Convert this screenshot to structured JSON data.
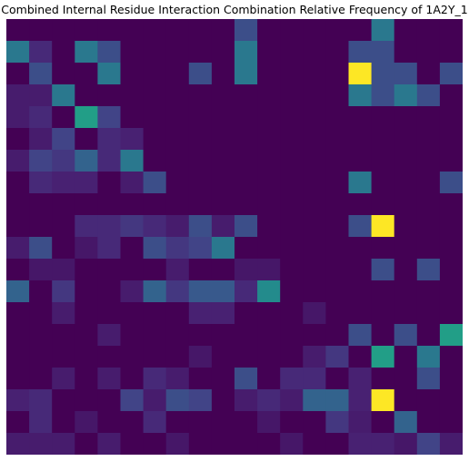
{
  "chart_data": {
    "type": "heatmap",
    "title": "Combined Internal Residue Interaction Combination Relative Frequency of 1A2Y_1",
    "colormap": "viridis",
    "value_range": [
      0,
      1
    ],
    "rows": 20,
    "cols": 20,
    "values": [
      [
        0,
        0,
        0,
        0,
        0,
        0,
        0,
        0,
        0,
        0,
        0.3,
        0,
        0,
        0,
        0,
        0,
        0.5,
        0,
        0,
        0
      ],
      [
        0.5,
        0.15,
        0,
        0.5,
        0.3,
        0,
        0,
        0,
        0,
        0,
        0.5,
        0,
        0,
        0,
        0,
        0.3,
        0.3,
        0,
        0,
        0
      ],
      [
        0,
        0.3,
        0,
        0,
        0.5,
        0,
        0,
        0,
        0.3,
        0,
        0.5,
        0,
        0,
        0,
        0,
        1,
        0.3,
        0.3,
        0,
        0.3
      ],
      [
        0.1,
        0.1,
        0.5,
        0,
        0,
        0,
        0,
        0,
        0,
        0,
        0,
        0,
        0,
        0,
        0,
        0.5,
        0.3,
        0.5,
        0.3,
        0
      ],
      [
        0.1,
        0.15,
        0,
        0.7,
        0.25,
        0,
        0,
        0,
        0,
        0,
        0,
        0,
        0,
        0,
        0,
        0,
        0,
        0,
        0,
        0
      ],
      [
        0,
        0.1,
        0.25,
        0,
        0.15,
        0.12,
        0,
        0,
        0,
        0,
        0,
        0,
        0,
        0,
        0,
        0,
        0,
        0,
        0,
        0
      ],
      [
        0.1,
        0.25,
        0.2,
        0.4,
        0.15,
        0.5,
        0,
        0,
        0,
        0,
        0,
        0,
        0,
        0,
        0,
        0,
        0,
        0,
        0,
        0
      ],
      [
        0,
        0.15,
        0.12,
        0.12,
        0,
        0.1,
        0.3,
        0,
        0,
        0,
        0,
        0,
        0,
        0,
        0,
        0.5,
        0,
        0,
        0,
        0.3
      ],
      [
        0,
        0,
        0,
        0,
        0,
        0,
        0,
        0,
        0,
        0,
        0,
        0,
        0,
        0,
        0,
        0,
        0,
        0,
        0,
        0
      ],
      [
        0,
        0,
        0,
        0.15,
        0.15,
        0.2,
        0.15,
        0.1,
        0.3,
        0.1,
        0.3,
        0,
        0,
        0,
        0,
        0.3,
        1,
        0,
        0,
        0
      ],
      [
        0.1,
        0.3,
        0,
        0.08,
        0.15,
        0,
        0.3,
        0.2,
        0.25,
        0.5,
        0,
        0,
        0,
        0,
        0,
        0,
        0,
        0,
        0,
        0
      ],
      [
        0,
        0.08,
        0.08,
        0,
        0,
        0,
        0,
        0.1,
        0,
        0,
        0.08,
        0.08,
        0,
        0,
        0,
        0,
        0.3,
        0,
        0.3,
        0
      ],
      [
        0.4,
        0,
        0.2,
        0,
        0,
        0.1,
        0.4,
        0.2,
        0.35,
        0.35,
        0.15,
        0.6,
        0,
        0,
        0,
        0,
        0,
        0,
        0,
        0
      ],
      [
        0,
        0,
        0.1,
        0,
        0,
        0,
        0,
        0,
        0.12,
        0.12,
        0,
        0,
        0,
        0.08,
        0,
        0,
        0,
        0,
        0,
        0
      ],
      [
        0,
        0,
        0,
        0,
        0.1,
        0,
        0,
        0,
        0,
        0,
        0,
        0,
        0,
        0,
        0,
        0.3,
        0,
        0.3,
        0,
        0.7
      ],
      [
        0,
        0,
        0,
        0,
        0,
        0,
        0,
        0,
        0.08,
        0,
        0,
        0,
        0,
        0.1,
        0.2,
        0,
        0.7,
        0,
        0.5,
        0
      ],
      [
        0,
        0,
        0.1,
        0,
        0.1,
        0,
        0.15,
        0.1,
        0,
        0,
        0.3,
        0,
        0.15,
        0.15,
        0,
        0.12,
        0,
        0,
        0.3,
        0
      ],
      [
        0.12,
        0.15,
        0,
        0,
        0,
        0.25,
        0.1,
        0.3,
        0.25,
        0,
        0.1,
        0.15,
        0.1,
        0.4,
        0.4,
        0.12,
        1,
        0,
        0,
        0
      ],
      [
        0,
        0.15,
        0,
        0.08,
        0,
        0,
        0.15,
        0,
        0,
        0,
        0,
        0.08,
        0,
        0,
        0.2,
        0.1,
        0,
        0.4,
        0,
        0
      ],
      [
        0.1,
        0.1,
        0.1,
        0,
        0.1,
        0,
        0,
        0.08,
        0,
        0,
        0,
        0,
        0.08,
        0,
        0,
        0.12,
        0.12,
        0.08,
        0.25,
        0.1
      ]
    ]
  }
}
